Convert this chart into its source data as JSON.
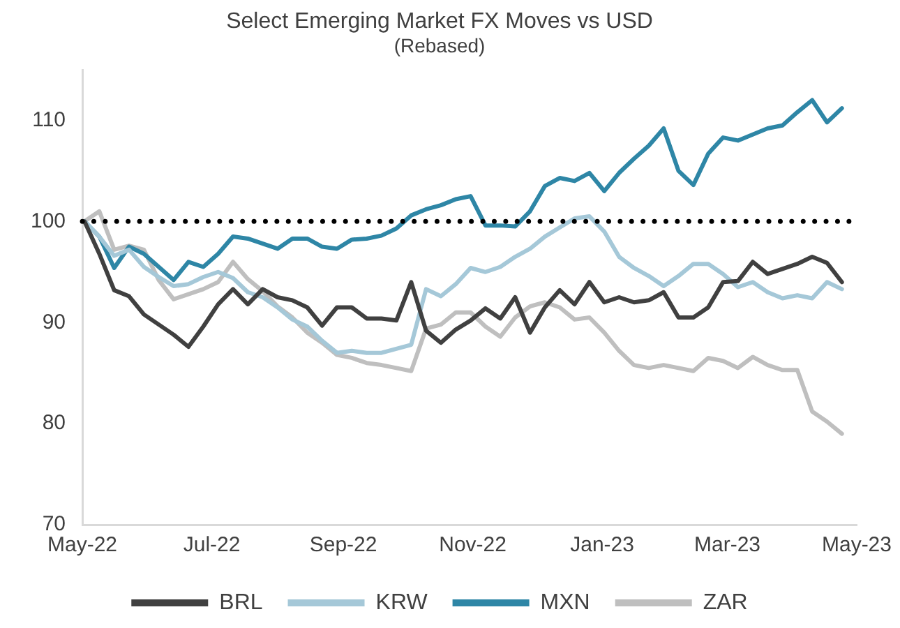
{
  "chart_data": {
    "type": "line",
    "title": "Select Emerging Market FX Moves vs USD",
    "subtitle": "(Rebased)",
    "x": [
      "2022-05-02",
      "2022-05-09",
      "2022-05-16",
      "2022-05-23",
      "2022-05-30",
      "2022-06-06",
      "2022-06-13",
      "2022-06-20",
      "2022-06-27",
      "2022-07-04",
      "2022-07-11",
      "2022-07-18",
      "2022-07-25",
      "2022-08-01",
      "2022-08-08",
      "2022-08-15",
      "2022-08-22",
      "2022-08-29",
      "2022-09-05",
      "2022-09-12",
      "2022-09-19",
      "2022-09-26",
      "2022-10-03",
      "2022-10-10",
      "2022-10-17",
      "2022-10-24",
      "2022-10-31",
      "2022-11-07",
      "2022-11-14",
      "2022-11-21",
      "2022-11-28",
      "2022-12-05",
      "2022-12-12",
      "2022-12-19",
      "2022-12-26",
      "2023-01-02",
      "2023-01-09",
      "2023-01-16",
      "2023-01-23",
      "2023-01-30",
      "2023-02-06",
      "2023-02-13",
      "2023-02-20",
      "2023-02-27",
      "2023-03-06",
      "2023-03-13",
      "2023-03-20",
      "2023-03-27",
      "2023-04-03",
      "2023-04-10",
      "2023-04-17",
      "2023-04-24"
    ],
    "series": [
      {
        "name": "BRL",
        "color": "#404040",
        "values": [
          100,
          96.8,
          93.2,
          92.6,
          90.8,
          89.8,
          88.8,
          87.6,
          89.6,
          91.8,
          93.3,
          91.8,
          93.3,
          92.5,
          92.2,
          91.5,
          89.7,
          91.5,
          91.5,
          90.4,
          90.4,
          90.2,
          94,
          89.2,
          88,
          89.3,
          90.2,
          91.4,
          90.4,
          92.5,
          89,
          91.5,
          93.2,
          91.8,
          94,
          92,
          92.5,
          92,
          92.2,
          93,
          90.5,
          90.5,
          91.5,
          94,
          94.1,
          96,
          94.8,
          95.3,
          95.8,
          96.5,
          95.9,
          94
        ]
      },
      {
        "name": "KRW",
        "color": "#a5c8d8",
        "values": [
          100,
          98.5,
          96.6,
          97.2,
          95.5,
          94.5,
          93.6,
          93.8,
          94.5,
          95,
          94.4,
          93,
          92.5,
          91.5,
          90.3,
          89.6,
          88.2,
          87,
          87.2,
          87,
          87,
          87.4,
          87.8,
          93.3,
          92.6,
          93.8,
          95.4,
          95,
          95.5,
          96.5,
          97.3,
          98.5,
          99.4,
          100.3,
          100.5,
          99,
          96.5,
          95.4,
          94.6,
          93.6,
          94.6,
          95.8,
          95.8,
          94.8,
          93.5,
          94,
          93,
          92.4,
          92.7,
          92.4,
          94,
          93.3
        ]
      },
      {
        "name": "MXN",
        "color": "#2e86a6",
        "values": [
          100,
          98.5,
          95.4,
          97.5,
          96.8,
          95.5,
          94.2,
          96,
          95.5,
          96.8,
          98.5,
          98.3,
          97.8,
          97.3,
          98.3,
          98.3,
          97.5,
          97.3,
          98.2,
          98.3,
          98.6,
          99.3,
          100.6,
          101.2,
          101.6,
          102.2,
          102.5,
          99.6,
          99.6,
          99.5,
          101,
          103.5,
          104.3,
          104,
          104.8,
          103,
          104.8,
          106.2,
          107.5,
          109.2,
          105,
          103.6,
          106.7,
          108.3,
          108,
          108.6,
          109.2,
          109.5,
          110.8,
          112,
          109.8,
          111.2
        ]
      },
      {
        "name": "ZAR",
        "color": "#bfbfbf",
        "values": [
          100,
          101,
          97.2,
          97.6,
          97.2,
          94.2,
          92.3,
          92.8,
          93.3,
          94,
          96,
          94.3,
          93.1,
          91.6,
          90.5,
          89,
          88,
          86.8,
          86.5,
          86,
          85.8,
          85.5,
          85.2,
          89.4,
          89.8,
          91,
          91,
          89.6,
          88.6,
          90.5,
          91.6,
          92,
          91.5,
          90.3,
          90.5,
          89,
          87.2,
          85.8,
          85.5,
          85.8,
          85.5,
          85.2,
          86.5,
          86.2,
          85.5,
          86.6,
          85.8,
          85.3,
          85.3,
          81.2,
          80.2,
          79
        ]
      }
    ],
    "xlim": [
      "2022-05-01",
      "2023-05-01"
    ],
    "xticks": [
      {
        "value": "2022-05-01",
        "label": "May-22"
      },
      {
        "value": "2022-07-01",
        "label": "Jul-22"
      },
      {
        "value": "2022-09-01",
        "label": "Sep-22"
      },
      {
        "value": "2022-11-01",
        "label": "Nov-22"
      },
      {
        "value": "2023-01-01",
        "label": "Jan-23"
      },
      {
        "value": "2023-03-01",
        "label": "Mar-23"
      },
      {
        "value": "2023-05-01",
        "label": "May-23"
      }
    ],
    "ylim": [
      70,
      115
    ],
    "yticks": [
      70,
      80,
      90,
      100,
      110
    ],
    "ref_lines": [
      {
        "axis": "y",
        "value": 100,
        "color": "#000000",
        "line_style": "dotted"
      }
    ],
    "grid": false,
    "legend": "bottom",
    "marker": "none",
    "line_style": "solid"
  }
}
